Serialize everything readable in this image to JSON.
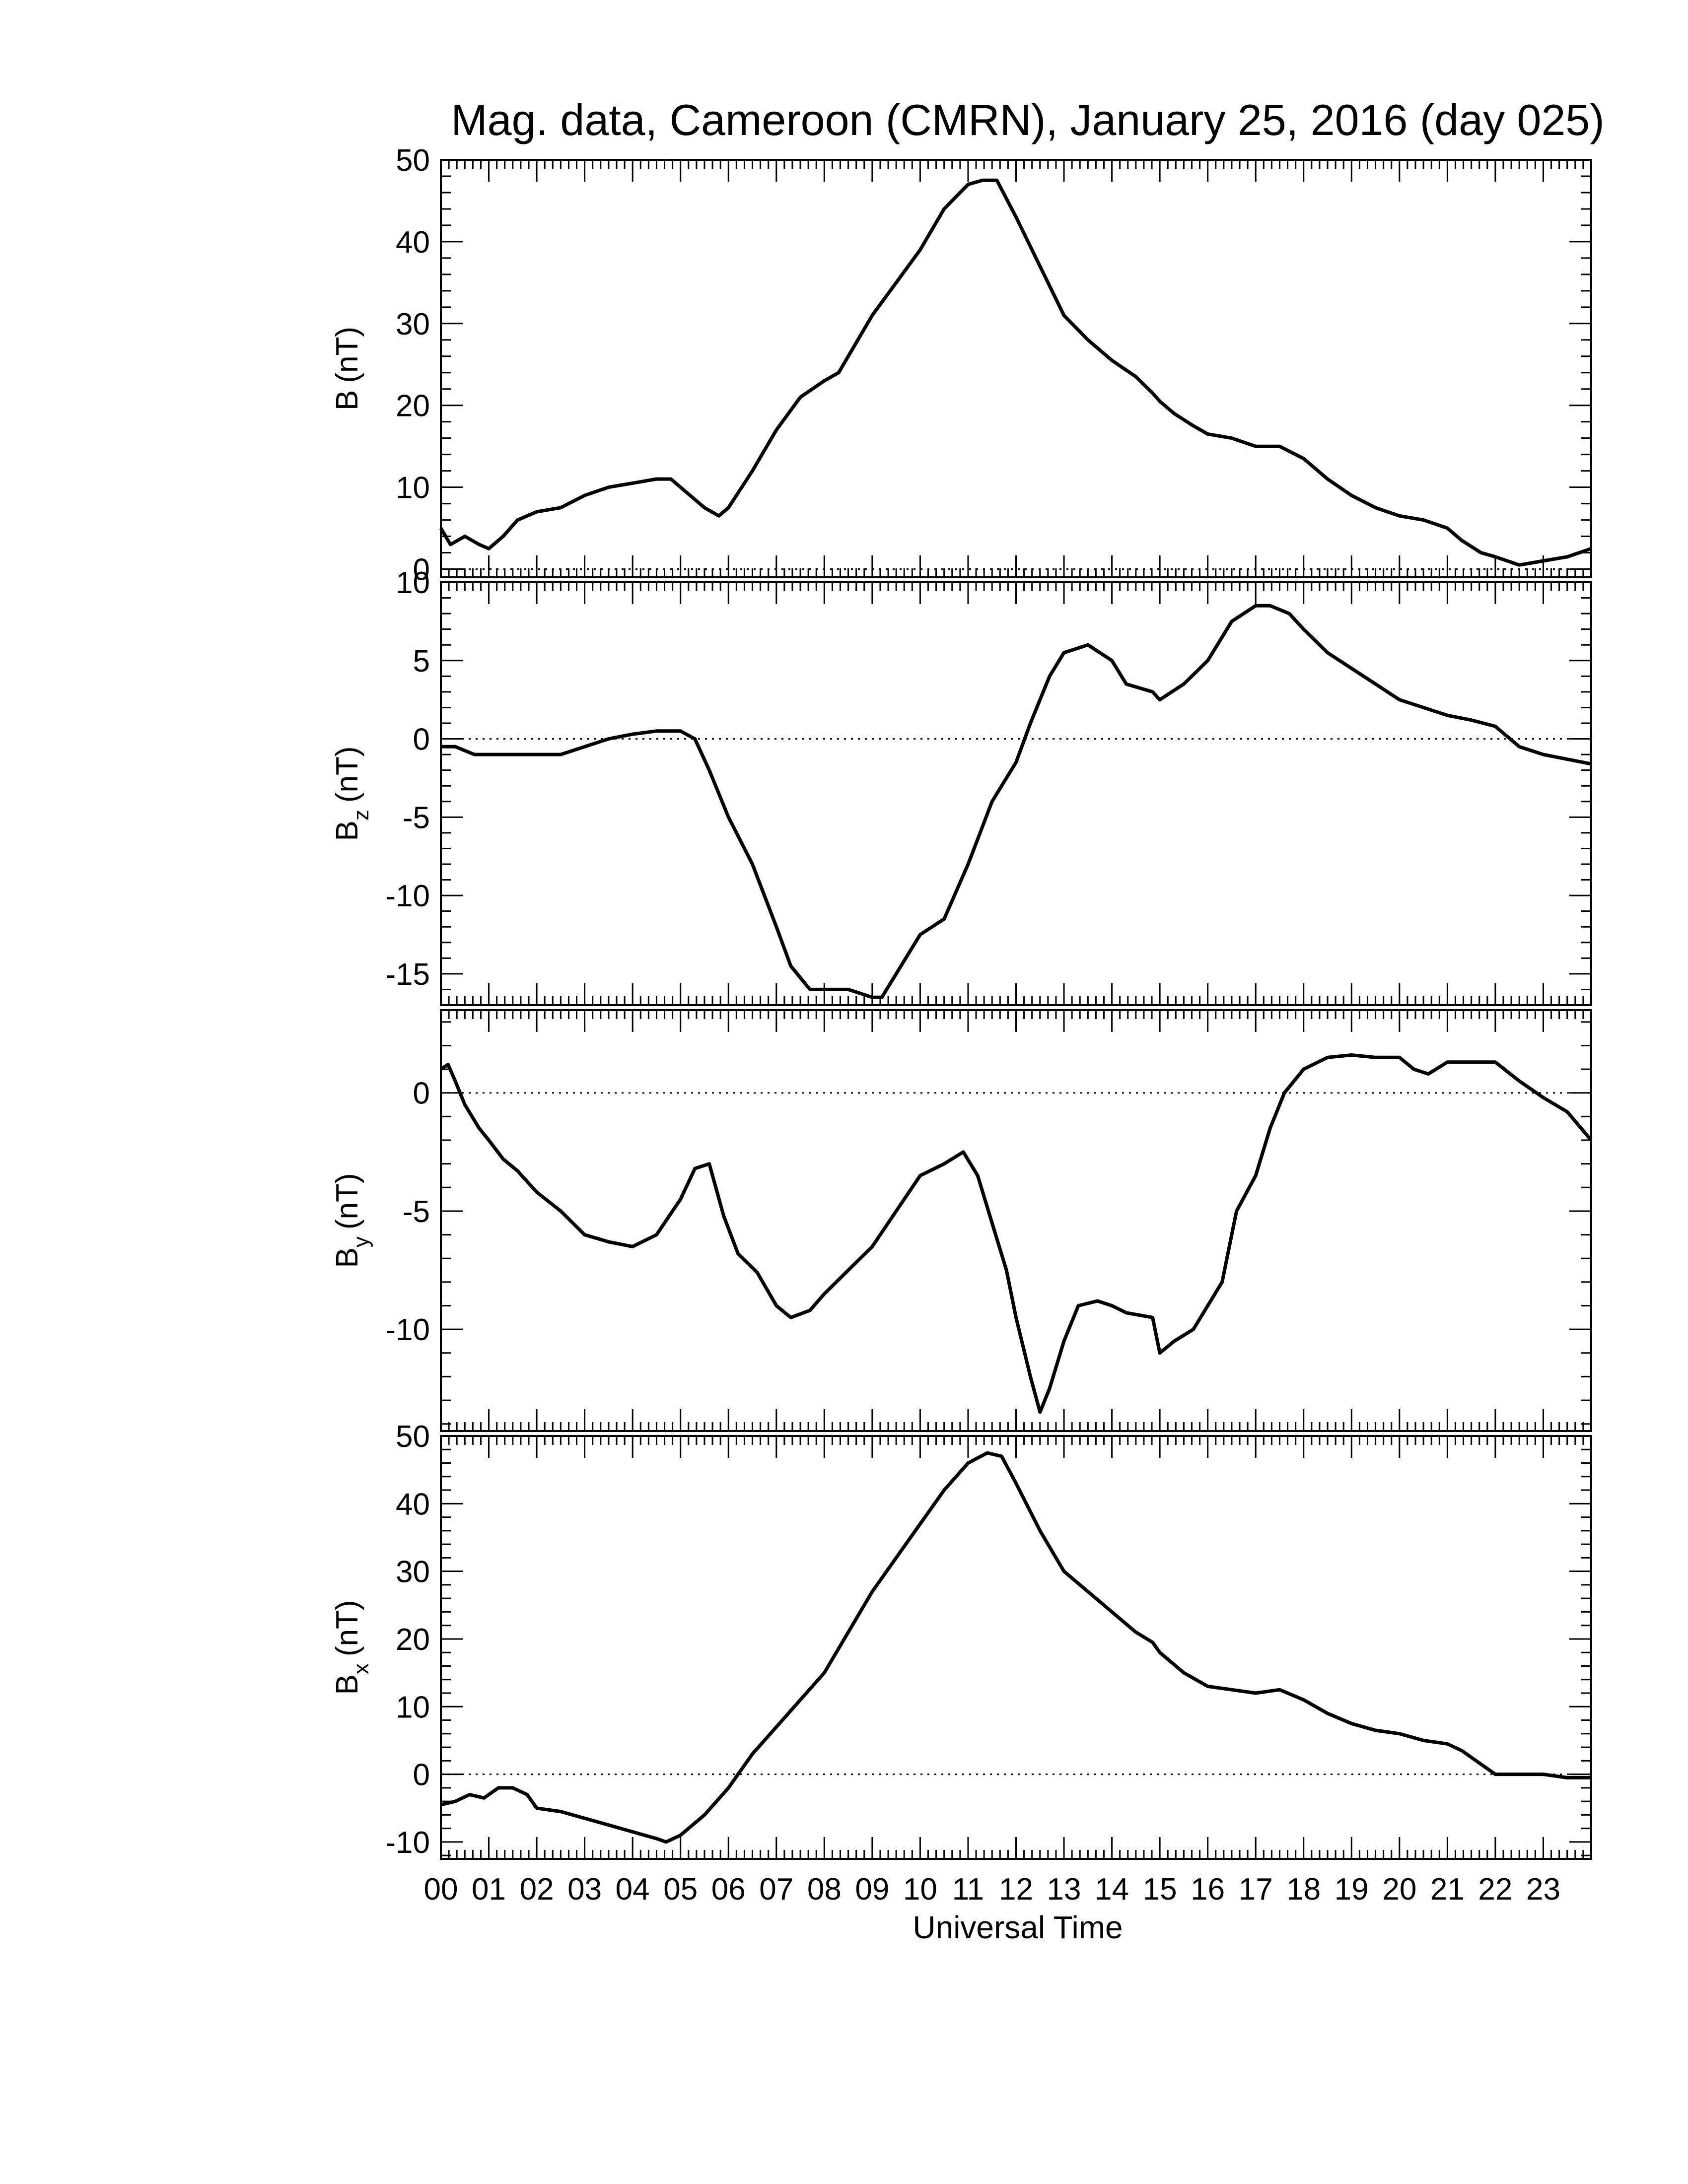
{
  "title": "Mag. data, Cameroon (CMRN), January 25, 2016 (day 025)",
  "xlabel": "Universal Time",
  "chart_data": {
    "type": "line",
    "title": "Mag. data, Cameroon (CMRN), January 25, 2016 (day 025)",
    "x_unit": "hour UT",
    "xlim": [
      0,
      24
    ],
    "xticks": [
      "00",
      "01",
      "02",
      "03",
      "04",
      "05",
      "06",
      "07",
      "08",
      "09",
      "10",
      "11",
      "12",
      "13",
      "14",
      "15",
      "16",
      "17",
      "18",
      "19",
      "20",
      "21",
      "22",
      "23"
    ],
    "xlabel": "Universal Time",
    "line_color": "#000000",
    "panels": [
      {
        "name": "B",
        "ylabel": "B (nT)",
        "ylabel_main": "B",
        "ylabel_sub": "",
        "ylabel_unit": "(nT)",
        "ylim": [
          -1,
          50
        ],
        "yticks": [
          0,
          10,
          20,
          30,
          40,
          50
        ],
        "zero_line": true,
        "x": [
          0,
          0.2,
          0.5,
          0.8,
          1.0,
          1.3,
          1.6,
          2.0,
          2.5,
          3.0,
          3.5,
          4.0,
          4.5,
          4.8,
          5.2,
          5.5,
          5.8,
          6.0,
          6.5,
          7.0,
          7.5,
          8.0,
          8.3,
          8.7,
          9.0,
          9.5,
          10.0,
          10.5,
          11.0,
          11.3,
          11.6,
          12.0,
          12.5,
          13.0,
          13.5,
          14.0,
          14.5,
          14.85,
          15.0,
          15.3,
          15.7,
          16.0,
          16.5,
          17.0,
          17.5,
          18.0,
          18.5,
          19.0,
          19.5,
          20.0,
          20.5,
          21.0,
          21.3,
          21.7,
          22.0,
          22.5,
          23.0,
          23.5,
          24.0
        ],
        "values": [
          5,
          3,
          4,
          3,
          2.5,
          4,
          6,
          7,
          7.5,
          9,
          10,
          10.5,
          11,
          11,
          9,
          7.5,
          6.5,
          7.5,
          12,
          17,
          21,
          23,
          24,
          28,
          31,
          35,
          39,
          44,
          47,
          47.5,
          47.5,
          43,
          37,
          31,
          28,
          25.5,
          23.5,
          21.5,
          20.5,
          19,
          17.5,
          16.5,
          16,
          15,
          15,
          13.5,
          11,
          9,
          7.5,
          6.5,
          6,
          5,
          3.5,
          2,
          1.5,
          0.5,
          1,
          1.5,
          2.5
        ]
      },
      {
        "name": "Bz",
        "ylabel": "Bz (nT)",
        "ylabel_main": "B",
        "ylabel_sub": "z",
        "ylabel_unit": "(nT)",
        "ylim": [
          -17,
          10
        ],
        "yticks": [
          -15,
          -10,
          -5,
          0,
          5,
          10
        ],
        "zero_line": true,
        "x": [
          0,
          0.3,
          0.7,
          1.0,
          1.5,
          2.0,
          2.5,
          3.0,
          3.5,
          4.0,
          4.5,
          5.0,
          5.3,
          5.6,
          6.0,
          6.5,
          7.0,
          7.3,
          7.7,
          8.0,
          8.5,
          9.0,
          9.2,
          9.5,
          10.0,
          10.5,
          11.0,
          11.5,
          12.0,
          12.3,
          12.7,
          13.0,
          13.5,
          14.0,
          14.3,
          14.85,
          15.0,
          15.5,
          16.0,
          16.5,
          17.0,
          17.3,
          17.7,
          18.0,
          18.5,
          19.0,
          19.5,
          20.0,
          20.5,
          21.0,
          21.5,
          22.0,
          22.5,
          23.0,
          23.5,
          24.0
        ],
        "values": [
          -0.5,
          -0.5,
          -1,
          -1,
          -1,
          -1,
          -1,
          -0.5,
          0,
          0.3,
          0.5,
          0.5,
          0,
          -2,
          -5,
          -8,
          -12,
          -14.5,
          -16,
          -16,
          -16,
          -16.5,
          -16.5,
          -15,
          -12.5,
          -11.5,
          -8,
          -4,
          -1.5,
          1,
          4,
          5.5,
          6,
          5,
          3.5,
          3,
          2.5,
          3.5,
          5,
          7.5,
          8.5,
          8.5,
          8,
          7,
          5.5,
          4.5,
          3.5,
          2.5,
          2,
          1.5,
          1.2,
          0.8,
          -0.5,
          -1,
          -1.3,
          -1.6
        ]
      },
      {
        "name": "By",
        "ylabel": "By (nT)",
        "ylabel_main": "B",
        "ylabel_sub": "y",
        "ylabel_unit": "(nT)",
        "ylim": [
          -14.3,
          3.5
        ],
        "yticks": [
          -10,
          -5,
          0
        ],
        "zero_line": true,
        "x": [
          0,
          0.15,
          0.3,
          0.5,
          0.8,
          1.0,
          1.3,
          1.6,
          2.0,
          2.5,
          3.0,
          3.5,
          4.0,
          4.5,
          5.0,
          5.3,
          5.6,
          5.9,
          6.2,
          6.6,
          7.0,
          7.3,
          7.7,
          8.0,
          8.5,
          9.0,
          9.5,
          10.0,
          10.5,
          10.9,
          11.2,
          11.5,
          11.8,
          12.0,
          12.3,
          12.5,
          12.7,
          13.0,
          13.3,
          13.7,
          14.0,
          14.3,
          14.85,
          15.0,
          15.3,
          15.7,
          16.0,
          16.3,
          16.6,
          17.0,
          17.3,
          17.6,
          18.0,
          18.5,
          19.0,
          19.5,
          20.0,
          20.3,
          20.6,
          21.0,
          21.5,
          22.0,
          22.5,
          23.0,
          23.5,
          24.0
        ],
        "values": [
          1,
          1.2,
          0.5,
          -0.5,
          -1.5,
          -2,
          -2.8,
          -3.3,
          -4.2,
          -5,
          -6,
          -6.3,
          -6.5,
          -6,
          -4.5,
          -3.2,
          -3,
          -5.2,
          -6.8,
          -7.6,
          -9,
          -9.5,
          -9.2,
          -8.5,
          -7.5,
          -6.5,
          -5,
          -3.5,
          -3,
          -2.5,
          -3.5,
          -5.5,
          -7.5,
          -9.5,
          -12,
          -13.5,
          -12.5,
          -10.5,
          -9,
          -8.8,
          -9,
          -9.3,
          -9.5,
          -11,
          -10.5,
          -10,
          -9,
          -8,
          -5,
          -3.5,
          -1.5,
          0,
          1,
          1.5,
          1.6,
          1.5,
          1.5,
          1,
          0.8,
          1.3,
          1.3,
          1.3,
          0.5,
          -0.2,
          -0.8,
          -2
        ]
      },
      {
        "name": "Bx",
        "ylabel": "Bx (nT)",
        "ylabel_main": "B",
        "ylabel_sub": "x",
        "ylabel_unit": "(nT)",
        "ylim": [
          -12.5,
          50
        ],
        "yticks": [
          -10,
          0,
          10,
          20,
          30,
          40,
          50
        ],
        "zero_line": true,
        "x": [
          0,
          0.3,
          0.6,
          0.9,
          1.2,
          1.5,
          1.8,
          2.0,
          2.5,
          3.0,
          3.5,
          4.0,
          4.5,
          4.7,
          5.0,
          5.5,
          6.0,
          6.5,
          7.0,
          7.5,
          8.0,
          8.5,
          9.0,
          9.5,
          10.0,
          10.5,
          11.0,
          11.4,
          11.7,
          12.0,
          12.5,
          13.0,
          13.5,
          14.0,
          14.5,
          14.85,
          15.0,
          15.5,
          16.0,
          16.5,
          17.0,
          17.5,
          18.0,
          18.5,
          19.0,
          19.5,
          20.0,
          20.5,
          21.0,
          21.3,
          21.7,
          22.0,
          22.5,
          23.0,
          23.5,
          24.0
        ],
        "values": [
          -4.5,
          -4,
          -3,
          -3.5,
          -2,
          -2,
          -3,
          -5,
          -5.5,
          -6.5,
          -7.5,
          -8.5,
          -9.5,
          -10,
          -9,
          -6,
          -2,
          3,
          7,
          11,
          15,
          21,
          27,
          32,
          37,
          42,
          46,
          47.5,
          47,
          43,
          36,
          30,
          27,
          24,
          21,
          19.5,
          18,
          15,
          13,
          12.5,
          12,
          12.5,
          11,
          9,
          7.5,
          6.5,
          6,
          5,
          4.5,
          3.5,
          1.5,
          0,
          0,
          0,
          -0.5,
          -0.5
        ]
      }
    ]
  }
}
